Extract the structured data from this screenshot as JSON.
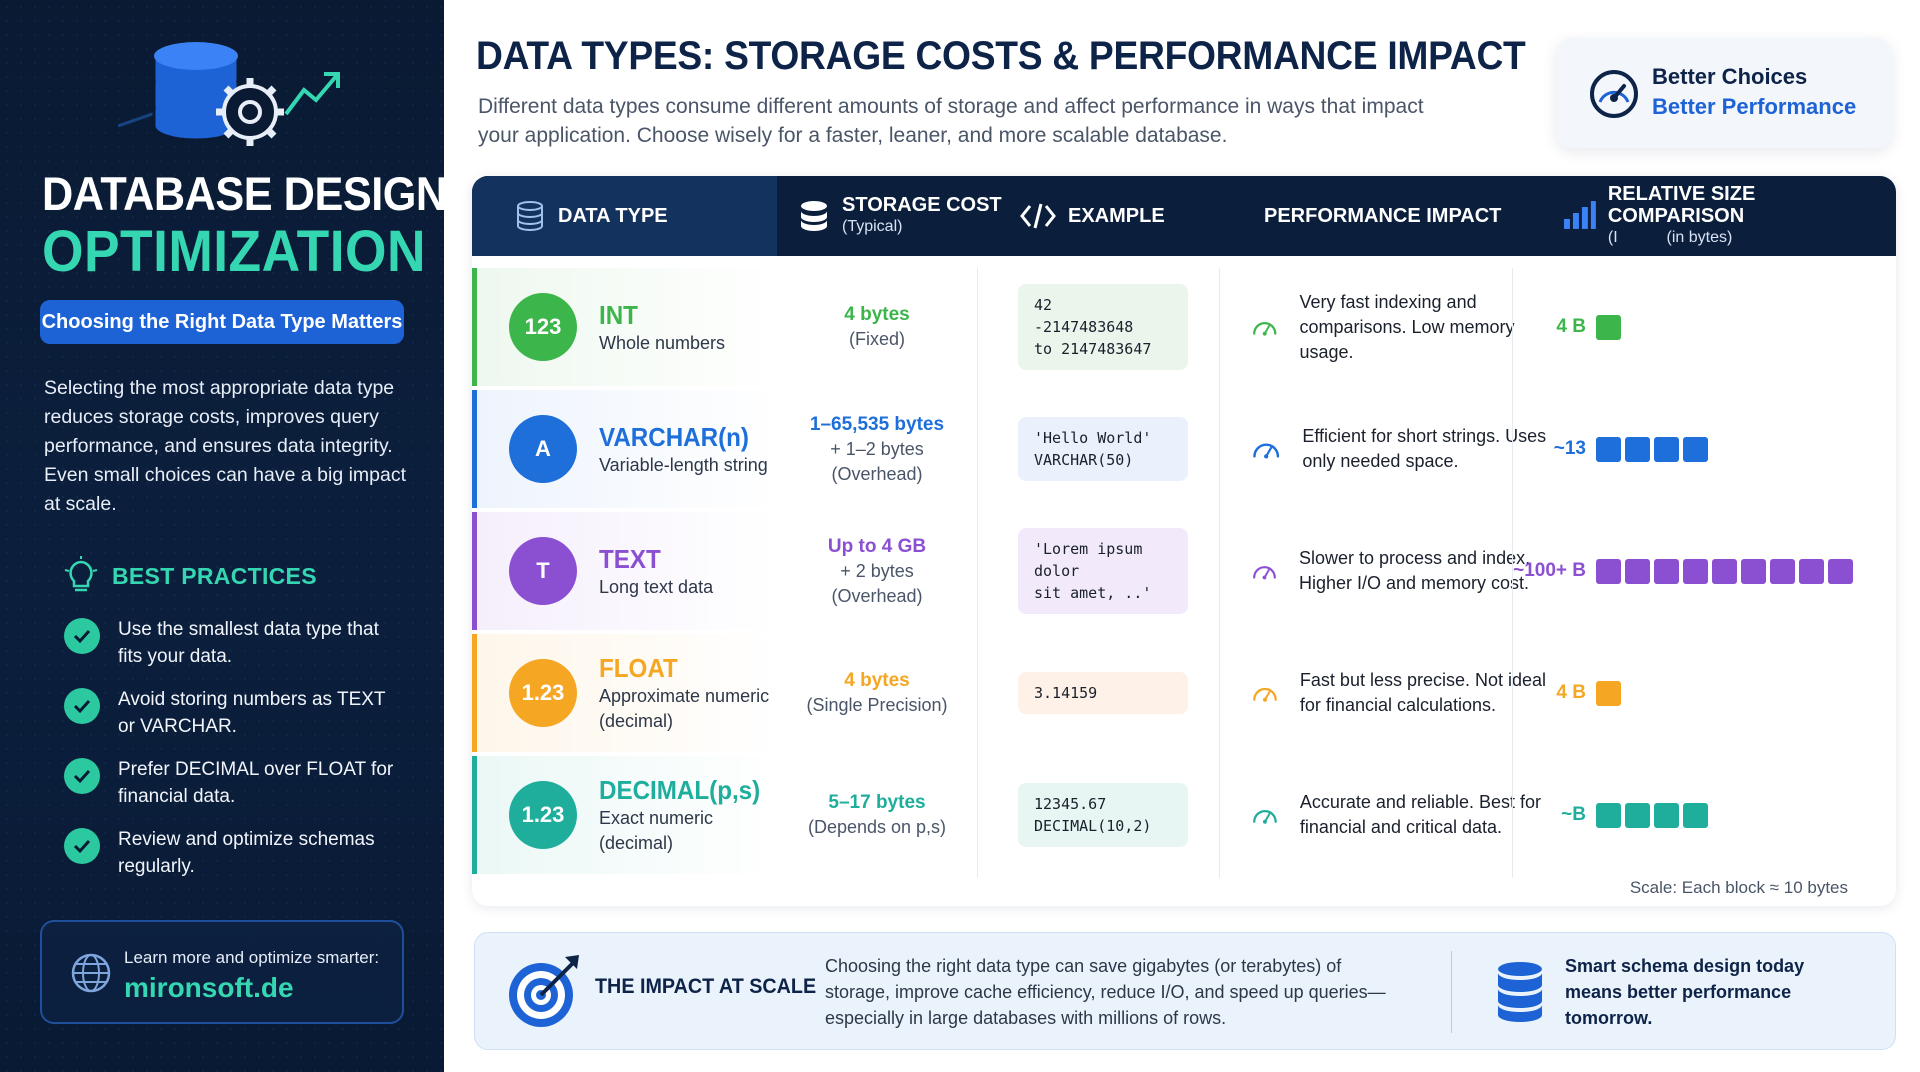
{
  "sidebar": {
    "title_line1": "DATABASE DESIGN",
    "title_line2": "OPTIMIZATION",
    "pill": "Choosing the Right Data Type Matters",
    "description": "Selecting the most appropriate data type reduces storage costs, improves query performance, and ensures data integrity. Even small choices can have a big impact at scale.",
    "best_practices_title": "BEST PRACTICES",
    "best_practices": [
      "Use the smallest data type that fits your data.",
      "Avoid storing numbers as TEXT or VARCHAR.",
      "Prefer DECIMAL over FLOAT for financial data.",
      "Review and optimize schemas regularly."
    ],
    "footer_label": "Learn more and optimize smarter:",
    "footer_site": "mironsoft.de"
  },
  "header": {
    "title": "DATA TYPES: STORAGE COSTS & PERFORMANCE IMPACT",
    "subtitle": "Different data types consume different amounts of storage and affect performance in ways that impact your application. Choose wisely for a faster, leaner, and more scalable database.",
    "badge_line1": "Better Choices",
    "badge_line2": "Better Performance"
  },
  "table": {
    "headers": {
      "type": "DATA TYPE",
      "cost": "STORAGE COST",
      "cost_sub": "(Typical)",
      "example": "EXAMPLE",
      "perf": "PERFORMANCE IMPACT",
      "size": "RELATIVE SIZE COMPARISON",
      "size_sub": "(in bytes)",
      "size_prefix": "(I"
    },
    "rows": [
      {
        "name": "INT",
        "icon_text": "123",
        "desc": "Whole numbers",
        "color": "#3cb54a",
        "tint": "#eef8ef",
        "cost_main": "4 bytes",
        "cost_sub": "(Fixed)",
        "cost_extra": "",
        "example": "42\n-2147483648\nto 2147483647",
        "example_bg": "#eaf6ec",
        "perf": "Very fast indexing and comparisons. Low memory usage.",
        "size_label": "4 B",
        "blocks": 1
      },
      {
        "name": "VARCHAR(n)",
        "icon_text": "A",
        "desc": "Variable-length string",
        "color": "#1e6fd9",
        "tint": "#eef4fd",
        "cost_main": "1–65,535 bytes",
        "cost_sub": "+ 1–2 bytes",
        "cost_extra": "(Overhead)",
        "example": "'Hello World'\nVARCHAR(50)",
        "example_bg": "#eaf1fc",
        "perf": "Efficient for short strings. Uses only needed space.",
        "size_label": "~13",
        "blocks": 4
      },
      {
        "name": "TEXT",
        "icon_text": "T",
        "desc": "Long text data",
        "color": "#8b4fd1",
        "tint": "#f5effc",
        "cost_main": "Up to 4 GB",
        "cost_sub": "+ 2 bytes",
        "cost_extra": "(Overhead)",
        "example": "'Lorem ipsum dolor\nsit amet, ..'",
        "example_bg": "#f2eafb",
        "perf": "Slower to process and index. Higher I/O and memory cost.",
        "size_label": "~100+ B",
        "blocks": 9
      },
      {
        "name": "FLOAT",
        "icon_text": "1.23",
        "desc": "Approximate numeric (decimal)",
        "color": "#f5a623",
        "tint": "#fef6ea",
        "cost_main": "4 bytes",
        "cost_sub": "(Single Precision)",
        "cost_extra": "",
        "example": "3.14159",
        "example_bg": "#fdf1e8",
        "perf": "Fast but less precise. Not ideal for financial calculations.",
        "size_label": "4 B",
        "blocks": 1
      },
      {
        "name": "DECIMAL(p,s)",
        "icon_text": "1.23",
        "desc": "Exact numeric (decimal)",
        "color": "#1fae9c",
        "tint": "#ebf8f6",
        "cost_main": "5–17 bytes",
        "cost_sub": "(Depends on p,s)",
        "cost_extra": "",
        "example": "12345.67\nDECIMAL(10,2)",
        "example_bg": "#e7f6f3",
        "perf": "Accurate and reliable. Best for financial and critical data.",
        "size_label": "~B",
        "blocks": 4
      }
    ],
    "scale_note": "Scale: Each block ≈ 10 bytes"
  },
  "banner": {
    "title": "THE IMPACT AT SCALE",
    "description": "Choosing the right data type can save gigabytes (or terabytes) of storage, improve cache efficiency, reduce I/O, and speed up queries—especially in large databases with millions of rows.",
    "right": "Smart schema design today means better performance tomorrow."
  }
}
